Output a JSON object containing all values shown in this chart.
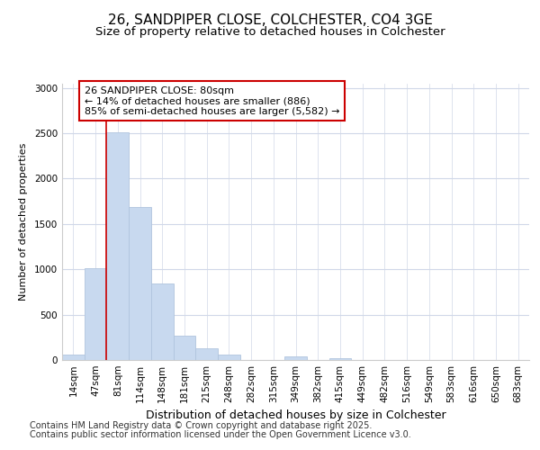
{
  "title_line1": "26, SANDPIPER CLOSE, COLCHESTER, CO4 3GE",
  "title_line2": "Size of property relative to detached houses in Colchester",
  "xlabel": "Distribution of detached houses by size in Colchester",
  "ylabel": "Number of detached properties",
  "bins": [
    "14sqm",
    "47sqm",
    "81sqm",
    "114sqm",
    "148sqm",
    "181sqm",
    "215sqm",
    "248sqm",
    "282sqm",
    "315sqm",
    "349sqm",
    "382sqm",
    "415sqm",
    "449sqm",
    "482sqm",
    "516sqm",
    "549sqm",
    "583sqm",
    "616sqm",
    "650sqm",
    "683sqm"
  ],
  "values": [
    55,
    1010,
    2510,
    1690,
    840,
    270,
    125,
    55,
    0,
    0,
    35,
    0,
    20,
    0,
    0,
    0,
    0,
    0,
    0,
    0,
    0
  ],
  "bar_color": "#c8d9ef",
  "bar_edge_color": "#b0c4de",
  "vline_x": 1.5,
  "vline_color": "#cc0000",
  "annotation_text": "26 SANDPIPER CLOSE: 80sqm\n← 14% of detached houses are smaller (886)\n85% of semi-detached houses are larger (5,582) →",
  "annotation_box_color": "#ffffff",
  "annotation_box_edge": "#cc0000",
  "ylim": [
    0,
    3050
  ],
  "yticks": [
    0,
    500,
    1000,
    1500,
    2000,
    2500,
    3000
  ],
  "fig_bg_color": "#ffffff",
  "plot_bg_color": "#ffffff",
  "grid_color": "#d0d8e8",
  "footer_line1": "Contains HM Land Registry data © Crown copyright and database right 2025.",
  "footer_line2": "Contains public sector information licensed under the Open Government Licence v3.0.",
  "title_fontsize": 11,
  "subtitle_fontsize": 9.5,
  "xlabel_fontsize": 9,
  "ylabel_fontsize": 8,
  "tick_fontsize": 7.5,
  "annotation_fontsize": 8,
  "footer_fontsize": 7
}
